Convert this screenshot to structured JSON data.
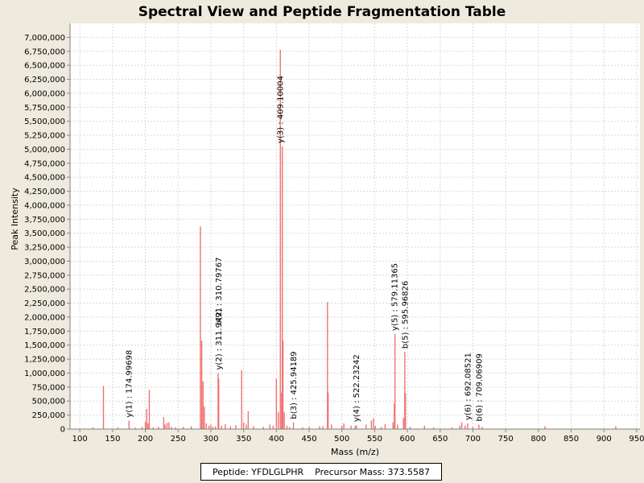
{
  "chart_data": {
    "type": "bar",
    "title": "Spectral View and Peptide Fragmentation Table",
    "xlabel": "Mass (m/z)",
    "ylabel": "Peak Intensity",
    "xlim": [
      85,
      955
    ],
    "ylim": [
      0,
      7250000
    ],
    "xticks": [
      100,
      150,
      200,
      250,
      300,
      350,
      400,
      450,
      500,
      550,
      600,
      650,
      700,
      750,
      800,
      850,
      900,
      950
    ],
    "xtick_labels": [
      "100",
      "150",
      "200",
      "250",
      "300",
      "350",
      "400",
      "450",
      "500",
      "550",
      "600",
      "650",
      "700",
      "750",
      "800",
      "850",
      "900",
      "950"
    ],
    "yticks": [
      0,
      250000,
      500000,
      750000,
      1000000,
      1250000,
      1500000,
      1750000,
      2000000,
      2250000,
      2500000,
      2750000,
      3000000,
      3250000,
      3500000,
      3750000,
      4000000,
      4250000,
      4500000,
      4750000,
      5000000,
      5250000,
      5500000,
      5750000,
      6000000,
      6250000,
      6500000,
      6750000,
      7000000
    ],
    "ytick_labels": [
      "0",
      "250,000",
      "500,000",
      "750,000",
      "1,000,000",
      "1,250,000",
      "1,500,000",
      "1,750,000",
      "2,000,000",
      "2,250,000",
      "2,500,000",
      "2,750,000",
      "3,000,000",
      "3,250,000",
      "3,500,000",
      "3,750,000",
      "4,000,000",
      "4,250,000",
      "4,500,000",
      "4,750,000",
      "5,000,000",
      "5,250,000",
      "5,500,000",
      "5,750,000",
      "6,000,000",
      "6,250,000",
      "6,500,000",
      "6,750,000",
      "7,000,000"
    ],
    "grid": true,
    "peak_color": "#f07070",
    "peaks": [
      {
        "mz": 120,
        "intensity": 30000
      },
      {
        "mz": 136,
        "intensity": 770000
      },
      {
        "mz": 158,
        "intensity": 30000
      },
      {
        "mz": 175,
        "intensity": 150000
      },
      {
        "mz": 185,
        "intensity": 25000
      },
      {
        "mz": 195,
        "intensity": 40000
      },
      {
        "mz": 200,
        "intensity": 130000
      },
      {
        "mz": 202,
        "intensity": 360000
      },
      {
        "mz": 204,
        "intensity": 100000
      },
      {
        "mz": 206,
        "intensity": 700000
      },
      {
        "mz": 212,
        "intensity": 30000
      },
      {
        "mz": 220,
        "intensity": 40000
      },
      {
        "mz": 228,
        "intensity": 210000
      },
      {
        "mz": 230,
        "intensity": 80000
      },
      {
        "mz": 233,
        "intensity": 110000
      },
      {
        "mz": 236,
        "intensity": 120000
      },
      {
        "mz": 240,
        "intensity": 40000
      },
      {
        "mz": 246,
        "intensity": 30000
      },
      {
        "mz": 258,
        "intensity": 40000
      },
      {
        "mz": 270,
        "intensity": 50000
      },
      {
        "mz": 284,
        "intensity": 3620000
      },
      {
        "mz": 286,
        "intensity": 1580000
      },
      {
        "mz": 288,
        "intensity": 850000
      },
      {
        "mz": 290,
        "intensity": 400000
      },
      {
        "mz": 293,
        "intensity": 100000
      },
      {
        "mz": 297,
        "intensity": 60000
      },
      {
        "mz": 300,
        "intensity": 80000
      },
      {
        "mz": 303,
        "intensity": 40000
      },
      {
        "mz": 307,
        "intensity": 50000
      },
      {
        "mz": 311,
        "intensity": 1000000
      },
      {
        "mz": 312,
        "intensity": 900000
      },
      {
        "mz": 316,
        "intensity": 60000
      },
      {
        "mz": 322,
        "intensity": 90000
      },
      {
        "mz": 330,
        "intensity": 50000
      },
      {
        "mz": 338,
        "intensity": 70000
      },
      {
        "mz": 347,
        "intensity": 1050000
      },
      {
        "mz": 350,
        "intensity": 120000
      },
      {
        "mz": 354,
        "intensity": 80000
      },
      {
        "mz": 357,
        "intensity": 320000
      },
      {
        "mz": 365,
        "intensity": 50000
      },
      {
        "mz": 380,
        "intensity": 40000
      },
      {
        "mz": 390,
        "intensity": 80000
      },
      {
        "mz": 395,
        "intensity": 60000
      },
      {
        "mz": 400,
        "intensity": 900000
      },
      {
        "mz": 403,
        "intensity": 300000
      },
      {
        "mz": 406,
        "intensity": 6780000
      },
      {
        "mz": 408,
        "intensity": 650000
      },
      {
        "mz": 409,
        "intensity": 5050000
      },
      {
        "mz": 410,
        "intensity": 1580000
      },
      {
        "mz": 412,
        "intensity": 300000
      },
      {
        "mz": 416,
        "intensity": 60000
      },
      {
        "mz": 420,
        "intensity": 40000
      },
      {
        "mz": 426,
        "intensity": 120000
      },
      {
        "mz": 440,
        "intensity": 30000
      },
      {
        "mz": 450,
        "intensity": 40000
      },
      {
        "mz": 466,
        "intensity": 50000
      },
      {
        "mz": 471,
        "intensity": 50000
      },
      {
        "mz": 478,
        "intensity": 2270000
      },
      {
        "mz": 479,
        "intensity": 650000
      },
      {
        "mz": 484,
        "intensity": 80000
      },
      {
        "mz": 500,
        "intensity": 60000
      },
      {
        "mz": 503,
        "intensity": 100000
      },
      {
        "mz": 514,
        "intensity": 60000
      },
      {
        "mz": 520,
        "intensity": 50000
      },
      {
        "mz": 522,
        "intensity": 70000
      },
      {
        "mz": 537,
        "intensity": 80000
      },
      {
        "mz": 545,
        "intensity": 150000
      },
      {
        "mz": 548,
        "intensity": 190000
      },
      {
        "mz": 551,
        "intensity": 60000
      },
      {
        "mz": 560,
        "intensity": 40000
      },
      {
        "mz": 566,
        "intensity": 90000
      },
      {
        "mz": 578,
        "intensity": 120000
      },
      {
        "mz": 580,
        "intensity": 460000
      },
      {
        "mz": 581,
        "intensity": 1700000
      },
      {
        "mz": 585,
        "intensity": 80000
      },
      {
        "mz": 594,
        "intensity": 200000
      },
      {
        "mz": 596,
        "intensity": 1380000
      },
      {
        "mz": 597,
        "intensity": 640000
      },
      {
        "mz": 604,
        "intensity": 40000
      },
      {
        "mz": 626,
        "intensity": 60000
      },
      {
        "mz": 640,
        "intensity": 30000
      },
      {
        "mz": 668,
        "intensity": 30000
      },
      {
        "mz": 680,
        "intensity": 60000
      },
      {
        "mz": 683,
        "intensity": 120000
      },
      {
        "mz": 688,
        "intensity": 60000
      },
      {
        "mz": 692,
        "intensity": 100000
      },
      {
        "mz": 700,
        "intensity": 40000
      },
      {
        "mz": 709,
        "intensity": 80000
      },
      {
        "mz": 714,
        "intensity": 40000
      },
      {
        "mz": 810,
        "intensity": 50000
      },
      {
        "mz": 918,
        "intensity": 50000
      }
    ],
    "annotations": [
      {
        "mz": 175,
        "intensity": 150000,
        "label": "y(1) : 174.99698"
      },
      {
        "mz": 311.5,
        "intensity": 1000000,
        "label": "y(2) : 311.9491"
      },
      {
        "mz": 311.5,
        "intensity": 1800000,
        "label": "b(2) : 310.79767"
      },
      {
        "mz": 406,
        "intensity": 5050000,
        "label": "y(3) : 409.10004"
      },
      {
        "mz": 426,
        "intensity": 120000,
        "label": "b(3) : 425.94189"
      },
      {
        "mz": 522,
        "intensity": 70000,
        "label": "y(4) : 522.23242"
      },
      {
        "mz": 580,
        "intensity": 1700000,
        "label": "y(5) : 579.11365"
      },
      {
        "mz": 596,
        "intensity": 1380000,
        "label": "b(5) : 595.96826"
      },
      {
        "mz": 692,
        "intensity": 100000,
        "label": "y(6) : 692.08521"
      },
      {
        "mz": 709,
        "intensity": 80000,
        "label": "b(6) : 709.06909"
      }
    ]
  },
  "legend": {
    "peptide": "Peptide: YFDLGLPHR",
    "precursor": "Precursor Mass: 373.5587"
  }
}
